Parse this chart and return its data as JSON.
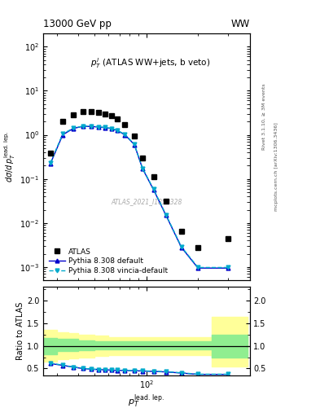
{
  "title_left": "13000 GeV pp",
  "title_right": "WW",
  "plot_label": "$p_T^l$ (ATLAS WW+jets, b veto)",
  "watermark": "ATLAS_2021_I1852328",
  "right_label_top": "Rivet 3.1.10, ≥ 3M events",
  "right_label_bottom": "mcplots.cern.ch [arXiv:1306.3436]",
  "ylabel_ratio": "Ratio to ATLAS",
  "xlim": [
    25,
    400
  ],
  "ylim_main": [
    0.0005,
    200
  ],
  "ylim_ratio": [
    0.35,
    2.3
  ],
  "atlas_x": [
    27.5,
    32.5,
    37.5,
    42.5,
    47.5,
    52.5,
    57.5,
    62.5,
    67.5,
    75,
    85,
    95,
    110,
    130,
    160,
    200,
    300
  ],
  "atlas_y": [
    0.38,
    2.0,
    2.9,
    3.3,
    3.3,
    3.2,
    3.0,
    2.7,
    2.3,
    1.7,
    0.95,
    0.3,
    0.11,
    0.031,
    0.0065,
    0.0028,
    0.0045
  ],
  "atlas_color": "black",
  "atlas_label": "ATLAS",
  "pythia_default_x": [
    27.5,
    32.5,
    37.5,
    42.5,
    47.5,
    52.5,
    57.5,
    62.5,
    67.5,
    75,
    85,
    95,
    110,
    130,
    160,
    200,
    300
  ],
  "pythia_default_y": [
    0.22,
    1.0,
    1.4,
    1.55,
    1.55,
    1.5,
    1.45,
    1.38,
    1.25,
    1.0,
    0.6,
    0.17,
    0.057,
    0.015,
    0.0028,
    0.00095,
    0.00095
  ],
  "pythia_default_color": "#0000cc",
  "pythia_default_label": "Pythia 8.308 default",
  "pythia_vincia_x": [
    27.5,
    32.5,
    37.5,
    42.5,
    47.5,
    52.5,
    57.5,
    62.5,
    67.5,
    75,
    85,
    95,
    110,
    130,
    160,
    200,
    300
  ],
  "pythia_vincia_y": [
    0.23,
    1.05,
    1.42,
    1.57,
    1.57,
    1.52,
    1.47,
    1.4,
    1.27,
    1.02,
    0.61,
    0.175,
    0.059,
    0.0155,
    0.0029,
    0.00098,
    0.00098
  ],
  "pythia_vincia_color": "#00aacc",
  "pythia_vincia_label": "Pythia 8.308 vincia-default",
  "ratio_pythia_default_y": [
    0.61,
    0.57,
    0.53,
    0.5,
    0.485,
    0.475,
    0.47,
    0.465,
    0.46,
    0.455,
    0.45,
    0.445,
    0.435,
    0.425,
    0.4,
    0.37,
    0.37
  ],
  "ratio_pythia_vincia_y": [
    0.62,
    0.575,
    0.535,
    0.505,
    0.49,
    0.48,
    0.475,
    0.47,
    0.465,
    0.46,
    0.455,
    0.45,
    0.44,
    0.43,
    0.405,
    0.375,
    0.375
  ],
  "band_x_edges": [
    25,
    30,
    35,
    40,
    45,
    50,
    55,
    60,
    65,
    70,
    80,
    90,
    100,
    120,
    140,
    180,
    240,
    390
  ],
  "green_band_low": [
    0.82,
    0.88,
    0.88,
    0.9,
    0.9,
    0.92,
    0.92,
    0.92,
    0.92,
    0.92,
    0.92,
    0.92,
    0.92,
    0.92,
    0.92,
    0.92,
    0.75,
    0.75
  ],
  "green_band_high": [
    1.18,
    1.15,
    1.15,
    1.12,
    1.12,
    1.1,
    1.1,
    1.1,
    1.1,
    1.1,
    1.1,
    1.1,
    1.1,
    1.1,
    1.1,
    1.1,
    1.25,
    1.25
  ],
  "yellow_band_low": [
    0.65,
    0.7,
    0.72,
    0.75,
    0.75,
    0.78,
    0.78,
    0.8,
    0.8,
    0.8,
    0.8,
    0.8,
    0.8,
    0.8,
    0.8,
    0.8,
    0.55,
    0.55
  ],
  "yellow_band_high": [
    1.35,
    1.3,
    1.28,
    1.25,
    1.25,
    1.22,
    1.22,
    1.2,
    1.2,
    1.2,
    1.2,
    1.2,
    1.2,
    1.2,
    1.2,
    1.2,
    1.65,
    1.65
  ],
  "green_color": "#90ee90",
  "yellow_color": "#ffff99"
}
